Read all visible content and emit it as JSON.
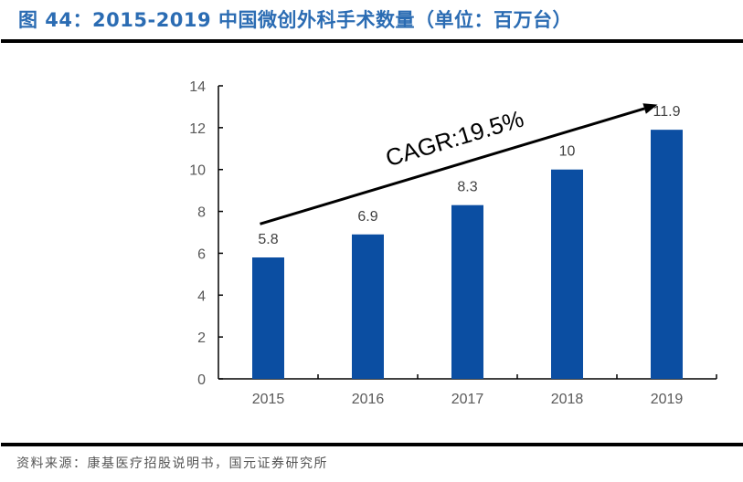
{
  "header": {
    "title": "图 44：2015-2019 中国微创外科手术数量（单位：百万台）"
  },
  "footer": {
    "source": "资料来源：康基医疗招股说明书，国元证券研究所"
  },
  "colors": {
    "bar": "#0b4ea2",
    "title": "#2b6cb3"
  },
  "chart_data": {
    "type": "bar",
    "title": "2015-2019 中国微创外科手术数量（单位：百万台）",
    "xlabel": "",
    "ylabel": "",
    "categories": [
      "2015",
      "2016",
      "2017",
      "2018",
      "2019"
    ],
    "values": [
      5.8,
      6.9,
      8.3,
      10,
      11.9
    ],
    "value_labels": [
      "5.8",
      "6.9",
      "8.3",
      "10",
      "11.9"
    ],
    "ylim": [
      0,
      14
    ],
    "yticks": [
      0,
      2,
      4,
      6,
      8,
      10,
      12,
      14
    ],
    "ytick_labels": [
      "0",
      "2",
      "4",
      "6",
      "8",
      "10",
      "12",
      "14"
    ],
    "grid": false,
    "legend": "none",
    "annotation": {
      "text": "CAGR:19.5%",
      "arrow_from": {
        "category": "2015",
        "value": 7.4
      },
      "arrow_to": {
        "category": "2019",
        "value": 13.1
      }
    }
  }
}
